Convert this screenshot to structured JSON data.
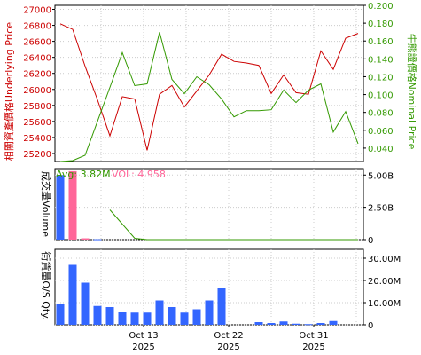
{
  "chart_data": [
    {
      "type": "line",
      "panel": "price",
      "x_dates": [
        "2025-10-07",
        "2025-10-08",
        "2025-10-09",
        "2025-10-10",
        "2025-10-13",
        "2025-10-14",
        "2025-10-15",
        "2025-10-16",
        "2025-10-17",
        "2025-10-20",
        "2025-10-21",
        "2025-10-22",
        "2025-10-23",
        "2025-10-24",
        "2025-10-27",
        "2025-10-28",
        "2025-10-29",
        "2025-10-30",
        "2025-10-31",
        "2025-11-03",
        "2025-11-04",
        "2025-11-05",
        "2025-11-06",
        "2025-11-07",
        "2025-11-10"
      ],
      "ylabel_left": "相關資產價格Underlying Price",
      "ylabel_right": "牛熊證價格Nominal Price",
      "y_left_ticks": [
        "25200",
        "25400",
        "25600",
        "25800",
        "26000",
        "26200",
        "26400",
        "26600",
        "26800",
        "27000"
      ],
      "y_right_ticks": [
        "0.040",
        "0.060",
        "0.080",
        "0.100",
        "0.120",
        "0.140",
        "0.160",
        "0.180",
        "0.200"
      ],
      "ylim_left": [
        25100,
        27050
      ],
      "ylim_right": [
        0.025,
        0.2
      ],
      "series": [
        {
          "axis": "left",
          "color": "#cc0000",
          "values": [
            26820,
            26750,
            26290,
            25870,
            25420,
            25910,
            25880,
            25240,
            25940,
            26050,
            25780,
            25980,
            26180,
            26440,
            26350,
            26330,
            26300,
            25950,
            26180,
            25960,
            25940,
            26480,
            26250,
            26640,
            26700
          ]
        },
        {
          "axis": "right",
          "color": "#339900",
          "values": [
            0.025,
            0.026,
            0.032,
            0.07,
            0.108,
            0.147,
            0.11,
            0.112,
            0.17,
            0.117,
            0.101,
            0.12,
            0.111,
            0.095,
            0.075,
            0.082,
            0.082,
            0.083,
            0.105,
            0.091,
            0.105,
            0.112,
            0.058,
            0.081,
            0.045
          ]
        }
      ]
    },
    {
      "type": "bar",
      "panel": "volume",
      "ylabel": "成交量Volume",
      "legend": [
        {
          "label": "Avg: 3.82M",
          "color": "#339900"
        },
        {
          "label": "VOL: 4.958",
          "color": "#ff6699"
        }
      ],
      "y_ticks": [
        "0",
        "2.50B",
        "5.00B"
      ],
      "ylim": [
        0,
        5500000000
      ],
      "values": [
        5000000000,
        5300000000,
        100000000,
        30000000,
        0,
        0,
        0,
        0,
        0,
        0,
        0,
        0,
        0,
        0,
        0,
        0,
        0,
        0,
        0,
        0,
        0,
        0,
        0,
        0,
        0
      ],
      "bar_colors": [
        "#3366ff",
        "#ff6699",
        "#ff6699",
        "#3366ff",
        "#3366ff"
      ],
      "avg_line": [
        null,
        null,
        null,
        null,
        2300000000,
        1200000000,
        100000000,
        0,
        0,
        0,
        0,
        0,
        0,
        0,
        0,
        0,
        0,
        0,
        0,
        0,
        0,
        0,
        0,
        0,
        0
      ]
    },
    {
      "type": "bar",
      "panel": "outstanding",
      "ylabel": "街貨量O/S Qty.",
      "y_ticks": [
        "0",
        "10.00M",
        "20.00M",
        "30.00M"
      ],
      "ylim": [
        0,
        34000000
      ],
      "color": "#3366ff",
      "values": [
        9500000,
        27000000,
        19000000,
        8500000,
        8000000,
        6000000,
        5500000,
        5500000,
        11000000,
        8000000,
        5500000,
        7000000,
        11000000,
        16500000,
        0,
        0,
        1200000,
        800000,
        1500000,
        500000,
        300000,
        800000,
        1700000,
        0,
        0
      ],
      "x_tick_labels": [
        {
          "index": 4,
          "line1": "Oct 13",
          "line2": "2025"
        },
        {
          "index": 11,
          "line1": "Oct 22",
          "line2": "2025"
        },
        {
          "index": 18,
          "line1": "Oct 31",
          "line2": "2025"
        }
      ]
    }
  ]
}
